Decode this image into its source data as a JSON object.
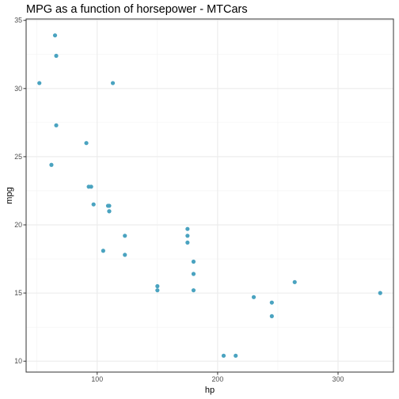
{
  "chart_data": {
    "type": "scatter",
    "title": "MPG as a function of horsepower - MTCars",
    "xlabel": "hp",
    "ylabel": "mpg",
    "xlim": [
      41,
      346
    ],
    "ylim": [
      9.2,
      35.1
    ],
    "x_ticks": [
      100,
      200,
      300
    ],
    "x_tick_labels": [
      "100",
      "200",
      "300"
    ],
    "y_ticks": [
      10,
      15,
      20,
      25,
      30,
      35
    ],
    "y_tick_labels": [
      "10",
      "15",
      "20",
      "25",
      "30",
      "35"
    ],
    "grid": true,
    "legend": "none",
    "point_color": "#4aa3c0",
    "points": [
      {
        "x": 110,
        "y": 21.0
      },
      {
        "x": 110,
        "y": 21.0
      },
      {
        "x": 93,
        "y": 22.8
      },
      {
        "x": 110,
        "y": 21.4
      },
      {
        "x": 175,
        "y": 18.7
      },
      {
        "x": 105,
        "y": 18.1
      },
      {
        "x": 245,
        "y": 14.3
      },
      {
        "x": 62,
        "y": 24.4
      },
      {
        "x": 95,
        "y": 22.8
      },
      {
        "x": 123,
        "y": 19.2
      },
      {
        "x": 123,
        "y": 17.8
      },
      {
        "x": 180,
        "y": 16.4
      },
      {
        "x": 180,
        "y": 17.3
      },
      {
        "x": 180,
        "y": 15.2
      },
      {
        "x": 205,
        "y": 10.4
      },
      {
        "x": 215,
        "y": 10.4
      },
      {
        "x": 230,
        "y": 14.7
      },
      {
        "x": 66,
        "y": 32.4
      },
      {
        "x": 52,
        "y": 30.4
      },
      {
        "x": 65,
        "y": 33.9
      },
      {
        "x": 97,
        "y": 21.5
      },
      {
        "x": 150,
        "y": 15.5
      },
      {
        "x": 150,
        "y": 15.2
      },
      {
        "x": 245,
        "y": 13.3
      },
      {
        "x": 175,
        "y": 19.2
      },
      {
        "x": 66,
        "y": 27.3
      },
      {
        "x": 91,
        "y": 26.0
      },
      {
        "x": 113,
        "y": 30.4
      },
      {
        "x": 264,
        "y": 15.8
      },
      {
        "x": 175,
        "y": 19.7
      },
      {
        "x": 335,
        "y": 15.0
      },
      {
        "x": 109,
        "y": 21.4
      }
    ]
  }
}
